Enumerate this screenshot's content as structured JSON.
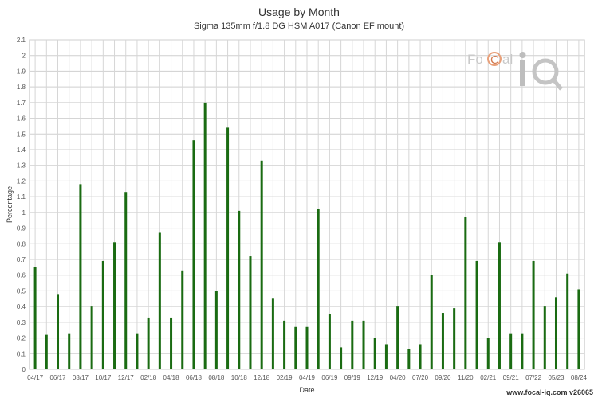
{
  "chart_data": {
    "type": "bar",
    "title": "Usage by Month",
    "subtitle": "Sigma 135mm f/1.8 DG HSM A017 (Canon EF mount)",
    "xlabel": "Date",
    "ylabel": "Percentage",
    "ylim": [
      0,
      2.1
    ],
    "ytick_step": 0.1,
    "grid": true,
    "bar_color": "#1a6b12",
    "categories": [
      "04/17",
      "05/17",
      "06/17",
      "07/17",
      "08/17",
      "09/17",
      "10/17",
      "11/17",
      "12/17",
      "01/18",
      "02/18",
      "03/18",
      "04/18",
      "05/18",
      "06/18",
      "07/18",
      "08/18",
      "09/18",
      "10/18",
      "11/18",
      "12/18",
      "01/19",
      "02/19",
      "03/19",
      "04/19",
      "05/19",
      "06/19",
      "07/19",
      "09/19",
      "10/19",
      "12/19",
      "01/20",
      "04/20",
      "05/20",
      "07/20",
      "08/20",
      "09/20",
      "10/20",
      "11/20",
      "12/20",
      "02/21",
      "03/21",
      "09/21",
      "10/21",
      "07/22",
      "08/22",
      "05/23",
      "06/23",
      "08/24"
    ],
    "values": [
      0.65,
      0.22,
      0.48,
      0.23,
      1.18,
      0.4,
      0.69,
      0.81,
      1.13,
      0.23,
      0.33,
      0.87,
      0.33,
      0.63,
      1.46,
      1.7,
      0.5,
      1.54,
      1.01,
      0.72,
      1.33,
      0.45,
      0.31,
      0.27,
      0.27,
      1.02,
      0.35,
      0.14,
      0.31,
      0.31,
      0.2,
      0.16,
      0.4,
      0.13,
      0.16,
      0.6,
      0.36,
      0.39,
      0.97,
      0.69,
      0.2,
      0.81,
      0.23,
      0.23,
      0.69,
      0.4,
      0.46,
      0.61,
      0.51
    ],
    "xtick_labels": [
      "04/17",
      "06/17",
      "08/17",
      "10/17",
      "12/17",
      "02/18",
      "04/18",
      "06/18",
      "08/18",
      "10/18",
      "12/18",
      "02/19",
      "04/19",
      "06/19",
      "09/19",
      "12/19",
      "04/20",
      "07/20",
      "09/20",
      "11/20",
      "02/21",
      "09/21",
      "07/22",
      "05/23",
      "08/24"
    ]
  },
  "watermark": "www.focal-iq.com v26065"
}
